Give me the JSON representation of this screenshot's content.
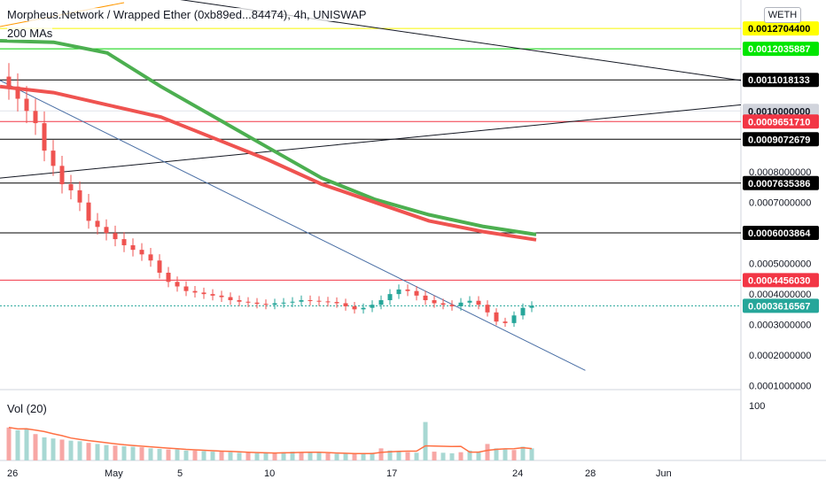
{
  "header": {
    "title": "Morpheus.Network / Wrapped Ether (0xb89ed...84474), 4h, UNISWAP",
    "indicator": "200 MAs",
    "volume_label": "Vol (20)",
    "currency_button": "WETH"
  },
  "colors": {
    "up": "#26a69a",
    "down": "#ef5350",
    "ma_fast": "#ef5350",
    "ma_slow": "#4caf50",
    "axis_text": "#131722",
    "grid": "#f0f3fa"
  },
  "chart_data": {
    "type": "candlestick",
    "price_axis": {
      "ticks": [
        "0.0001000000",
        "0.0002000000",
        "0.0003000000",
        "0.0004000000",
        "0.0005000000",
        "0.0006000000",
        "0.0007000000",
        "0.0008000000",
        "0.0010000000",
        "0.0011000000"
      ],
      "range": [
        0.0,
        0.0013
      ]
    },
    "time_axis": {
      "ticks": [
        "26",
        "May",
        "5",
        "10",
        "17",
        "24",
        "28",
        "Jun"
      ]
    },
    "volume_axis": {
      "ticks": [
        "100"
      ]
    },
    "price_labels": [
      {
        "text": "0.0012704400",
        "value": 0.00127044,
        "bg": "#ffff00",
        "fg": "#000000",
        "line": "#f7f700"
      },
      {
        "text": "0.0012035887",
        "value": 0.0012035887,
        "bg": "#00e600",
        "fg": "#ffffff",
        "line": "#00d000"
      },
      {
        "text": "0.0011018133",
        "value": 0.0011018133,
        "bg": "#000000",
        "fg": "#ffffff",
        "line": "#000000"
      },
      {
        "text": "0.0010000000",
        "value": 0.001,
        "bg": "#d1d4dc",
        "fg": "#131722",
        "line": "#e0e3eb"
      },
      {
        "text": "0.0009651710",
        "value": 0.000965171,
        "bg": "#f23645",
        "fg": "#ffffff",
        "line": "#f23645"
      },
      {
        "text": "0.0009072679",
        "value": 0.0009072679,
        "bg": "#000000",
        "fg": "#ffffff",
        "line": "#000000"
      },
      {
        "text": "0.0007635386",
        "value": 0.0007635386,
        "bg": "#000000",
        "fg": "#ffffff",
        "line": "#000000"
      },
      {
        "text": "0.0006003864",
        "value": 0.0006003864,
        "bg": "#000000",
        "fg": "#ffffff",
        "line": "#000000"
      },
      {
        "text": "0.0004456030",
        "value": 0.000445603,
        "bg": "#f23645",
        "fg": "#ffffff",
        "line": "#f23645"
      },
      {
        "text": "0.0003616567",
        "value": 0.0003616567,
        "bg": "#26a69a",
        "fg": "#ffffff",
        "line": "#26a69a"
      }
    ],
    "ma_fast": [
      0.00108,
      0.00106,
      0.00102,
      0.00098,
      0.00091,
      0.00084,
      0.00076,
      0.0007,
      0.00064,
      0.000605,
      0.000578
    ],
    "ma_slow": [
      0.00123,
      0.001225,
      0.00119,
      0.00108,
      0.00098,
      0.00088,
      0.00078,
      0.00071,
      0.00066,
      0.000622,
      0.000595
    ],
    "candles": [
      0.00108,
      0.00104,
      0.001,
      0.00096,
      0.00087,
      0.00082,
      0.00076,
      0.00074,
      0.0007,
      0.00064,
      0.00062,
      0.0006,
      0.00058,
      0.00056,
      0.000545,
      0.00053,
      0.00051,
      0.00047,
      0.00044,
      0.000425,
      0.00041,
      0.000405,
      0.0004,
      0.000395,
      0.00039,
      0.00038,
      0.000375,
      0.000372,
      0.000368,
      0.000365,
      0.00037,
      0.000372,
      0.000375,
      0.00038,
      0.000378,
      0.000376,
      0.000374,
      0.00037,
      0.00036,
      0.00035,
      0.000355,
      0.000365,
      0.00038,
      0.0004,
      0.000415,
      0.00041,
      0.000395,
      0.00038,
      0.00037,
      0.000365,
      0.00036,
      0.000372,
      0.000378,
      0.000365,
      0.00034,
      0.00031,
      0.000305,
      0.00033,
      0.000355,
      0.000362
    ],
    "volumes": [
      60,
      55,
      58,
      48,
      42,
      40,
      38,
      36,
      35,
      32,
      30,
      28,
      27,
      26,
      25,
      24,
      22,
      21,
      20,
      20,
      18,
      18,
      17,
      16,
      16,
      15,
      14,
      14,
      13,
      13,
      14,
      15,
      16,
      15,
      14,
      14,
      13,
      12,
      12,
      12,
      13,
      14,
      22,
      18,
      16,
      15,
      14,
      70,
      16,
      14,
      13,
      15,
      18,
      16,
      30,
      22,
      20,
      19,
      25,
      22
    ],
    "trend_lines": [
      {
        "name": "top-diagonal",
        "points": [
          [
            0.0,
            0.00145
          ],
          [
            1.0,
            0.0011
          ]
        ],
        "color": "#131722"
      },
      {
        "name": "mid-diagonal",
        "points": [
          [
            0.0,
            0.00078
          ],
          [
            1.0,
            0.00102
          ]
        ],
        "color": "#131722"
      },
      {
        "name": "down-trend",
        "points": [
          [
            0.0,
            0.0011
          ],
          [
            0.79,
            0.00015
          ]
        ],
        "color": "#4a6fa5"
      }
    ]
  }
}
